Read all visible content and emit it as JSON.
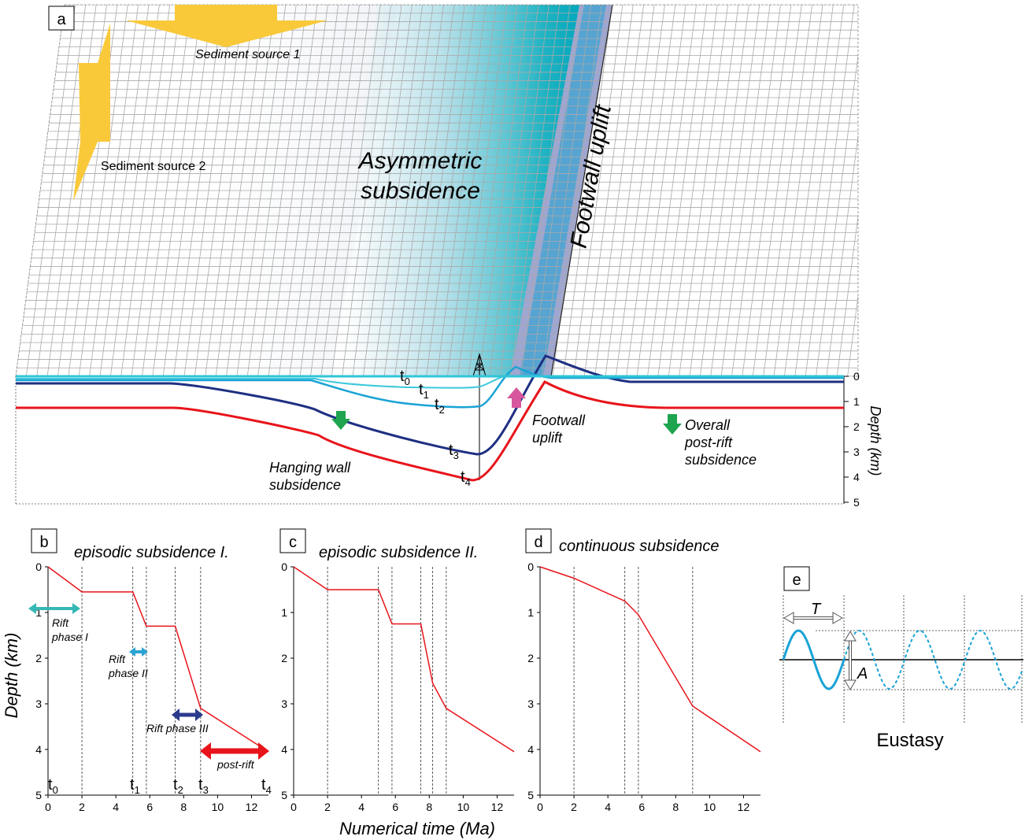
{
  "colors": {
    "red": "#e8141b",
    "navy": "#1e2f82",
    "cyan": "#1aa3d6",
    "cyan_light": "#3cc8dc",
    "teal": "#1fb4c2",
    "sediment": "#f9c93a",
    "uplift_arrow": "#d6579b",
    "subsidence_arrow": "#1ea44f",
    "rift1": "#35b7b3",
    "rift2": "#2ba3d3",
    "rift3": "#2b3b8c",
    "grid": "#a9a9a9",
    "eustasy": "#1aa3d6"
  },
  "panel_a": {
    "letter": "a",
    "sediment_source_1": "Sediment source 1",
    "sediment_source_2": "Sediment source 2",
    "asym_line1": "Asymmetric",
    "asym_line2": "subsidence",
    "footwall_uplift_big": "Footwall uplift",
    "hanging_line1": "Hanging wall",
    "hanging_line2": "subsidence",
    "footwall_line1": "Footwall",
    "footwall_line2": "uplift",
    "overall_line1": "Overall",
    "overall_line2": "post-rift",
    "overall_line3": "subsidence",
    "depth_label": "Depth (km)",
    "depth_ticks": [
      "0",
      "1",
      "2",
      "3",
      "4",
      "5"
    ],
    "time_labels": [
      {
        "base": "t",
        "sub": "0"
      },
      {
        "base": "t",
        "sub": "1"
      },
      {
        "base": "t",
        "sub": "2"
      },
      {
        "base": "t",
        "sub": "3"
      },
      {
        "base": "t",
        "sub": "4"
      }
    ]
  },
  "panel_b": {
    "letter": "b",
    "title": "episodic subsidence I.",
    "rift1_line1": "Rift",
    "rift1_line2": "phase I",
    "rift2_line1": "Rift",
    "rift2_line2": "phase II",
    "rift3": "Rift phase III",
    "postrift": "post-rift",
    "time_labels": [
      {
        "base": "t",
        "sub": "0"
      },
      {
        "base": "t",
        "sub": "1"
      },
      {
        "base": "t",
        "sub": "2"
      },
      {
        "base": "t",
        "sub": "3"
      },
      {
        "base": "t",
        "sub": "4"
      }
    ]
  },
  "panel_c": {
    "letter": "c",
    "title": "episodic subsidence II."
  },
  "panel_d": {
    "letter": "d",
    "title": "continuous subsidence"
  },
  "panel_e": {
    "letter": "e",
    "period_label": "T",
    "amplitude_label": "A",
    "caption": "Eustasy"
  },
  "axes": {
    "ylabel": "Depth (km)",
    "xlabel": "Numerical time (Ma)",
    "x_ticks": [
      "0",
      "2",
      "4",
      "6",
      "8",
      "10",
      "12"
    ],
    "y_ticks": [
      "0",
      "1",
      "2",
      "3",
      "4",
      "5"
    ]
  },
  "chart_data": [
    {
      "type": "line",
      "title": "episodic subsidence I.",
      "xlabel": "Numerical time (Ma)",
      "ylabel": "Depth (km)",
      "xlim": [
        0,
        13
      ],
      "ylim": [
        0,
        5
      ],
      "y_inverted": true,
      "x": [
        0,
        2,
        5,
        5.8,
        7.5,
        9,
        13
      ],
      "y": [
        0,
        0.55,
        0.55,
        1.3,
        1.3,
        3.1,
        4.05
      ],
      "vlines": [
        2,
        5,
        5.8,
        7.5,
        9
      ]
    },
    {
      "type": "line",
      "title": "episodic subsidence II.",
      "xlabel": "Numerical time (Ma)",
      "ylabel": "Depth (km)",
      "xlim": [
        0,
        13
      ],
      "ylim": [
        0,
        5
      ],
      "y_inverted": true,
      "x": [
        0,
        2,
        5,
        5.8,
        7.5,
        8.2,
        9,
        13
      ],
      "y": [
        0,
        0.5,
        0.5,
        1.25,
        1.25,
        2.55,
        3.1,
        4.05
      ],
      "vlines": [
        2,
        5,
        5.8,
        7.5,
        8.2,
        9
      ]
    },
    {
      "type": "line",
      "title": "continuous subsidence",
      "xlabel": "Numerical time (Ma)",
      "ylabel": "Depth (km)",
      "xlim": [
        0,
        13
      ],
      "ylim": [
        0,
        5
      ],
      "y_inverted": true,
      "x": [
        0,
        2,
        5,
        5.8,
        9,
        13
      ],
      "y": [
        0,
        0.25,
        0.75,
        1.05,
        3.05,
        4.05
      ],
      "vlines": [
        2,
        5,
        5.8,
        9
      ]
    }
  ]
}
